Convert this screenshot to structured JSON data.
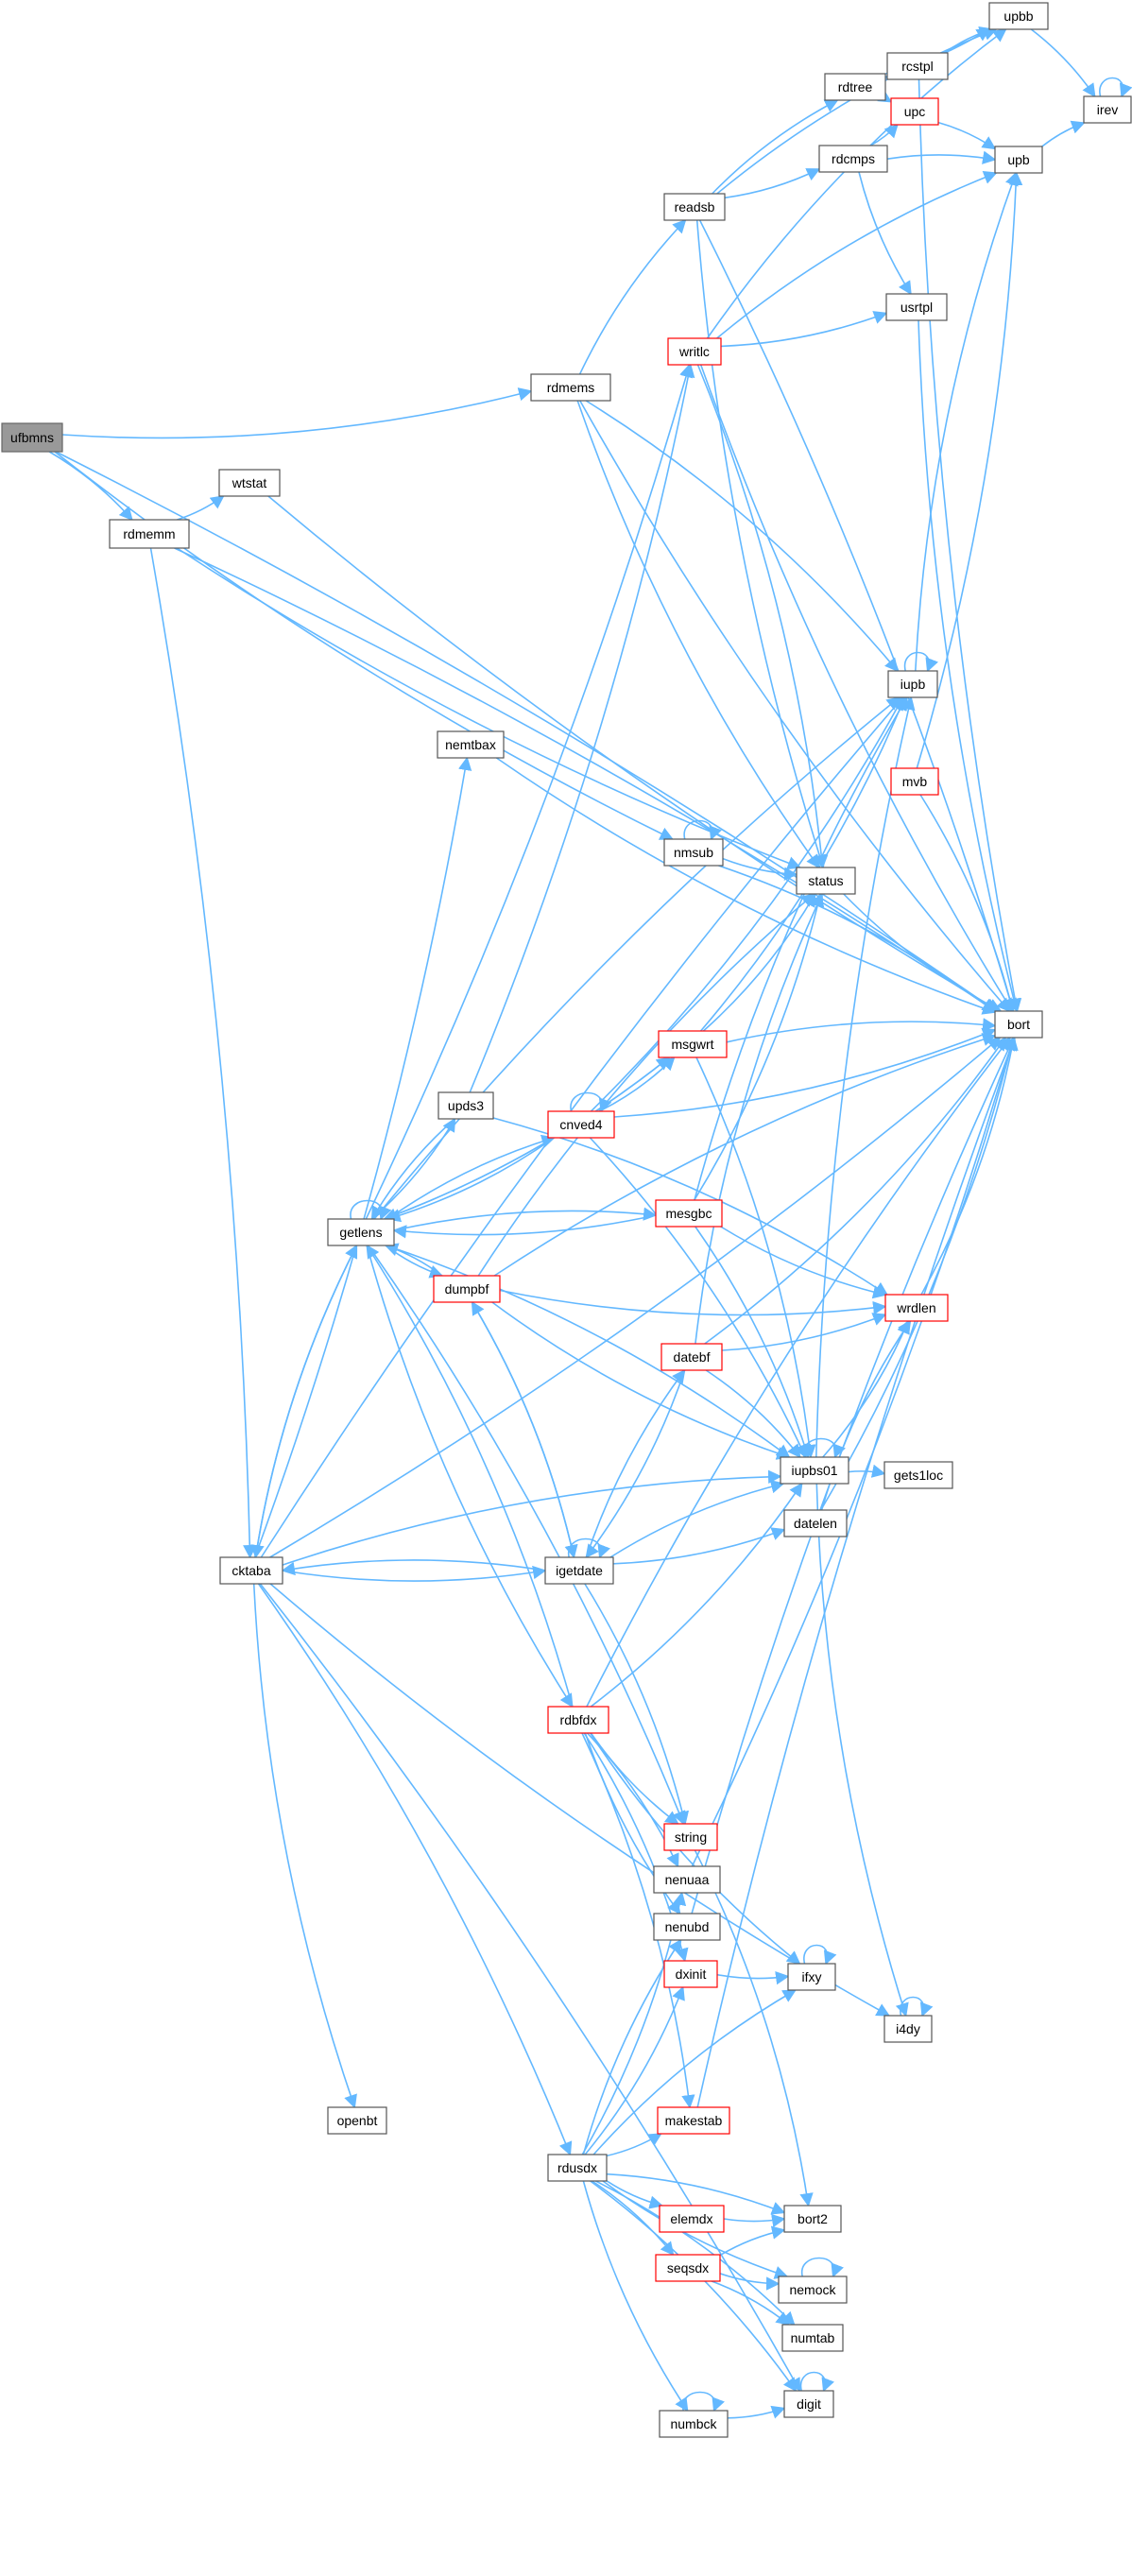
{
  "nodes": [
    {
      "id": "ufbmns",
      "label": "ufbmns",
      "style": "root"
    },
    {
      "id": "rdmemm",
      "label": "rdmemm",
      "style": "normal"
    },
    {
      "id": "wtstat",
      "label": "wtstat",
      "style": "normal"
    },
    {
      "id": "rdmems",
      "label": "rdmems",
      "style": "normal"
    },
    {
      "id": "readsb",
      "label": "readsb",
      "style": "normal"
    },
    {
      "id": "rdtree",
      "label": "rdtree",
      "style": "normal"
    },
    {
      "id": "rcstpl",
      "label": "rcstpl",
      "style": "normal"
    },
    {
      "id": "upbb",
      "label": "upbb",
      "style": "normal"
    },
    {
      "id": "irev",
      "label": "irev",
      "style": "normal"
    },
    {
      "id": "upc",
      "label": "upc",
      "style": "red"
    },
    {
      "id": "rdcmps",
      "label": "rdcmps",
      "style": "normal"
    },
    {
      "id": "upb",
      "label": "upb",
      "style": "normal"
    },
    {
      "id": "usrtpl",
      "label": "usrtpl",
      "style": "normal"
    },
    {
      "id": "writlc",
      "label": "writlc",
      "style": "red"
    },
    {
      "id": "bort",
      "label": "bort",
      "style": "normal"
    },
    {
      "id": "iupb",
      "label": "iupb",
      "style": "normal"
    },
    {
      "id": "nemtbax",
      "label": "nemtbax",
      "style": "normal"
    },
    {
      "id": "mvb",
      "label": "mvb",
      "style": "red"
    },
    {
      "id": "nmsub",
      "label": "nmsub",
      "style": "normal"
    },
    {
      "id": "status",
      "label": "status",
      "style": "normal"
    },
    {
      "id": "msgwrt",
      "label": "msgwrt",
      "style": "red"
    },
    {
      "id": "upds3",
      "label": "upds3",
      "style": "normal"
    },
    {
      "id": "cnved4",
      "label": "cnved4",
      "style": "red"
    },
    {
      "id": "getlens",
      "label": "getlens",
      "style": "normal"
    },
    {
      "id": "mesgbc",
      "label": "mesgbc",
      "style": "red"
    },
    {
      "id": "dumpbf",
      "label": "dumpbf",
      "style": "red"
    },
    {
      "id": "wrdlen",
      "label": "wrdlen",
      "style": "red"
    },
    {
      "id": "datebf",
      "label": "datebf",
      "style": "red"
    },
    {
      "id": "iupbs01",
      "label": "iupbs01",
      "style": "normal"
    },
    {
      "id": "gets1loc",
      "label": "gets1loc",
      "style": "normal"
    },
    {
      "id": "datelen",
      "label": "datelen",
      "style": "normal"
    },
    {
      "id": "cktaba",
      "label": "cktaba",
      "style": "normal"
    },
    {
      "id": "igetdate",
      "label": "igetdate",
      "style": "normal"
    },
    {
      "id": "rdbfdx",
      "label": "rdbfdx",
      "style": "red"
    },
    {
      "id": "string",
      "label": "string",
      "style": "red"
    },
    {
      "id": "nenuaa",
      "label": "nenuaa",
      "style": "normal"
    },
    {
      "id": "nenubd",
      "label": "nenubd",
      "style": "normal"
    },
    {
      "id": "dxinit",
      "label": "dxinit",
      "style": "red"
    },
    {
      "id": "ifxy",
      "label": "ifxy",
      "style": "normal"
    },
    {
      "id": "i4dy",
      "label": "i4dy",
      "style": "normal"
    },
    {
      "id": "openbt",
      "label": "openbt",
      "style": "normal"
    },
    {
      "id": "makestab",
      "label": "makestab",
      "style": "red"
    },
    {
      "id": "rdusdx",
      "label": "rdusdx",
      "style": "normal"
    },
    {
      "id": "bort2",
      "label": "bort2",
      "style": "normal"
    },
    {
      "id": "elemdx",
      "label": "elemdx",
      "style": "red"
    },
    {
      "id": "seqsdx",
      "label": "seqsdx",
      "style": "red"
    },
    {
      "id": "nemock",
      "label": "nemock",
      "style": "normal"
    },
    {
      "id": "numtab",
      "label": "numtab",
      "style": "normal"
    },
    {
      "id": "digit",
      "label": "digit",
      "style": "normal"
    },
    {
      "id": "numbck",
      "label": "numbck",
      "style": "normal"
    }
  ],
  "edges": [
    [
      "ufbmns",
      "rdmems"
    ],
    [
      "ufbmns",
      "rdmemm"
    ],
    [
      "ufbmns",
      "nmsub"
    ],
    [
      "ufbmns",
      "bort"
    ],
    [
      "rdmemm",
      "wtstat"
    ],
    [
      "rdmemm",
      "cktaba"
    ],
    [
      "rdmemm",
      "status"
    ],
    [
      "rdmemm",
      "bort"
    ],
    [
      "wtstat",
      "bort"
    ],
    [
      "rdmems",
      "readsb"
    ],
    [
      "rdmems",
      "status"
    ],
    [
      "rdmems",
      "iupb"
    ],
    [
      "rdmems",
      "bort"
    ],
    [
      "readsb",
      "rdtree"
    ],
    [
      "readsb",
      "rdcmps"
    ],
    [
      "readsb",
      "upbb"
    ],
    [
      "readsb",
      "status"
    ],
    [
      "readsb",
      "bort"
    ],
    [
      "rdtree",
      "rcstpl"
    ],
    [
      "rdtree",
      "upc"
    ],
    [
      "rdtree",
      "upbb"
    ],
    [
      "rcstpl",
      "upbb"
    ],
    [
      "rcstpl",
      "bort"
    ],
    [
      "upbb",
      "irev"
    ],
    [
      "irev",
      "irev"
    ],
    [
      "upc",
      "upb"
    ],
    [
      "rdcmps",
      "upc"
    ],
    [
      "rdcmps",
      "upb"
    ],
    [
      "rdcmps",
      "usrtpl"
    ],
    [
      "upb",
      "irev"
    ],
    [
      "usrtpl",
      "bort"
    ],
    [
      "writlc",
      "upb"
    ],
    [
      "writlc",
      "usrtpl"
    ],
    [
      "writlc",
      "status"
    ],
    [
      "writlc",
      "bort"
    ],
    [
      "writlc",
      "upbb"
    ],
    [
      "iupb",
      "iupb"
    ],
    [
      "iupb",
      "upb"
    ],
    [
      "nemtbax",
      "bort"
    ],
    [
      "mvb",
      "bort"
    ],
    [
      "mvb",
      "upb"
    ],
    [
      "nmsub",
      "nmsub"
    ],
    [
      "nmsub",
      "status"
    ],
    [
      "nmsub",
      "bort"
    ],
    [
      "status",
      "bort"
    ],
    [
      "msgwrt",
      "getlens"
    ],
    [
      "msgwrt",
      "status"
    ],
    [
      "msgwrt",
      "bort"
    ],
    [
      "msgwrt",
      "iupb"
    ],
    [
      "msgwrt",
      "iupbs01"
    ],
    [
      "upds3",
      "getlens"
    ],
    [
      "upds3",
      "wrdlen"
    ],
    [
      "upds3",
      "writlc"
    ],
    [
      "cnved4",
      "cnved4"
    ],
    [
      "cnved4",
      "msgwrt"
    ],
    [
      "cnved4",
      "getlens"
    ],
    [
      "cnved4",
      "iupb"
    ],
    [
      "cnved4",
      "iupbs01"
    ],
    [
      "cnved4",
      "bort"
    ],
    [
      "getlens",
      "getlens"
    ],
    [
      "getlens",
      "upds3"
    ],
    [
      "getlens",
      "cnved4"
    ],
    [
      "getlens",
      "msgwrt"
    ],
    [
      "getlens",
      "mesgbc"
    ],
    [
      "getlens",
      "dumpbf"
    ],
    [
      "getlens",
      "iupb"
    ],
    [
      "getlens",
      "writlc"
    ],
    [
      "getlens",
      "iupbs01"
    ],
    [
      "getlens",
      "cktaba"
    ],
    [
      "getlens",
      "string"
    ],
    [
      "getlens",
      "rdbfdx"
    ],
    [
      "mesgbc",
      "getlens"
    ],
    [
      "mesgbc",
      "status"
    ],
    [
      "mesgbc",
      "iupb"
    ],
    [
      "mesgbc",
      "wrdlen"
    ],
    [
      "mesgbc",
      "iupbs01"
    ],
    [
      "dumpbf",
      "getlens"
    ],
    [
      "dumpbf",
      "status"
    ],
    [
      "dumpbf",
      "wrdlen"
    ],
    [
      "dumpbf",
      "bort"
    ],
    [
      "dumpbf",
      "iupbs01"
    ],
    [
      "dumpbf",
      "igetdate"
    ],
    [
      "wrdlen",
      "bort"
    ],
    [
      "datebf",
      "iupbs01"
    ],
    [
      "datebf",
      "wrdlen"
    ],
    [
      "datebf",
      "status"
    ],
    [
      "datebf",
      "bort"
    ],
    [
      "datebf",
      "igetdate"
    ],
    [
      "iupbs01",
      "iupbs01"
    ],
    [
      "iupbs01",
      "gets1loc"
    ],
    [
      "iupbs01",
      "wrdlen"
    ],
    [
      "iupbs01",
      "iupb"
    ],
    [
      "iupbs01",
      "i4dy"
    ],
    [
      "datelen",
      "wrdlen"
    ],
    [
      "datelen",
      "bort"
    ],
    [
      "cktaba",
      "getlens"
    ],
    [
      "cktaba",
      "igetdate"
    ],
    [
      "cktaba",
      "iupbs01"
    ],
    [
      "cktaba",
      "nemtbax"
    ],
    [
      "cktaba",
      "iupb"
    ],
    [
      "cktaba",
      "openbt"
    ],
    [
      "cktaba",
      "rdusdx"
    ],
    [
      "cktaba",
      "i4dy"
    ],
    [
      "cktaba",
      "digit"
    ],
    [
      "cktaba",
      "bort"
    ],
    [
      "igetdate",
      "igetdate"
    ],
    [
      "igetdate",
      "cktaba"
    ],
    [
      "igetdate",
      "datebf"
    ],
    [
      "igetdate",
      "dumpbf"
    ],
    [
      "igetdate",
      "iupbs01"
    ],
    [
      "igetdate",
      "datelen"
    ],
    [
      "igetdate",
      "string"
    ],
    [
      "rdbfdx",
      "getlens"
    ],
    [
      "rdbfdx",
      "bort"
    ],
    [
      "rdbfdx",
      "iupbs01"
    ],
    [
      "rdbfdx",
      "nenuaa"
    ],
    [
      "rdbfdx",
      "nenubd"
    ],
    [
      "rdbfdx",
      "dxinit"
    ],
    [
      "rdbfdx",
      "ifxy"
    ],
    [
      "rdbfdx",
      "makestab"
    ],
    [
      "rdbfdx",
      "string"
    ],
    [
      "string",
      "bort2"
    ],
    [
      "nenuaa",
      "bort"
    ],
    [
      "nenubd",
      "bort"
    ],
    [
      "dxinit",
      "ifxy"
    ],
    [
      "ifxy",
      "ifxy"
    ],
    [
      "i4dy",
      "i4dy"
    ],
    [
      "makestab",
      "bort"
    ],
    [
      "rdusdx",
      "nenuaa"
    ],
    [
      "rdusdx",
      "nenubd"
    ],
    [
      "rdusdx",
      "dxinit"
    ],
    [
      "rdusdx",
      "ifxy"
    ],
    [
      "rdusdx",
      "makestab"
    ],
    [
      "rdusdx",
      "bort2"
    ],
    [
      "rdusdx",
      "elemdx"
    ],
    [
      "rdusdx",
      "seqsdx"
    ],
    [
      "rdusdx",
      "nemock"
    ],
    [
      "rdusdx",
      "numtab"
    ],
    [
      "rdusdx",
      "numbck"
    ],
    [
      "rdusdx",
      "digit"
    ],
    [
      "elemdx",
      "bort2"
    ],
    [
      "seqsdx",
      "bort2"
    ],
    [
      "seqsdx",
      "nemock"
    ],
    [
      "seqsdx",
      "numtab"
    ],
    [
      "nemock",
      "nemock"
    ],
    [
      "numbck",
      "numbck"
    ],
    [
      "numbck",
      "digit"
    ],
    [
      "digit",
      "digit"
    ]
  ]
}
